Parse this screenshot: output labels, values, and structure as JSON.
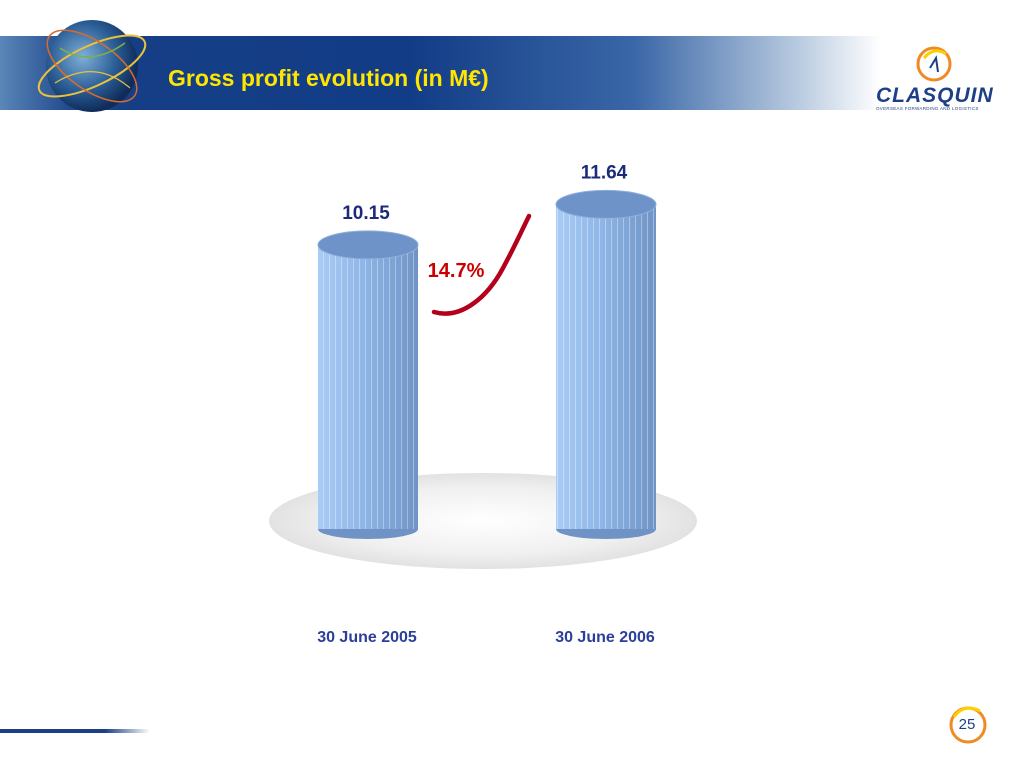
{
  "header": {
    "title": "Gross profit evolution (in M€)",
    "brand": "CLASQUIN",
    "brand_tagline": "OVERSEAS FORWARDING AND LOGISTICS"
  },
  "chart_data": {
    "type": "bar",
    "categories": [
      "30 June 2005",
      "30 June 2006"
    ],
    "values": [
      10.15,
      11.64
    ],
    "data_labels": [
      "10.15",
      "11.64"
    ],
    "annotations": [
      {
        "text": "14.7%",
        "color": "#cc0000"
      }
    ],
    "ylim": [
      0,
      12.5
    ],
    "grid": false,
    "legend": "none",
    "bar_style": "3d-cylinder"
  },
  "colors": {
    "title": "#ffe600",
    "header_band": "#123c86",
    "value_labels": "#1d2a7a",
    "category_labels": "#2b3f9a",
    "growth_label": "#cc0000",
    "bar": "#8fb6e8"
  },
  "footer": {
    "page_number": "25"
  }
}
